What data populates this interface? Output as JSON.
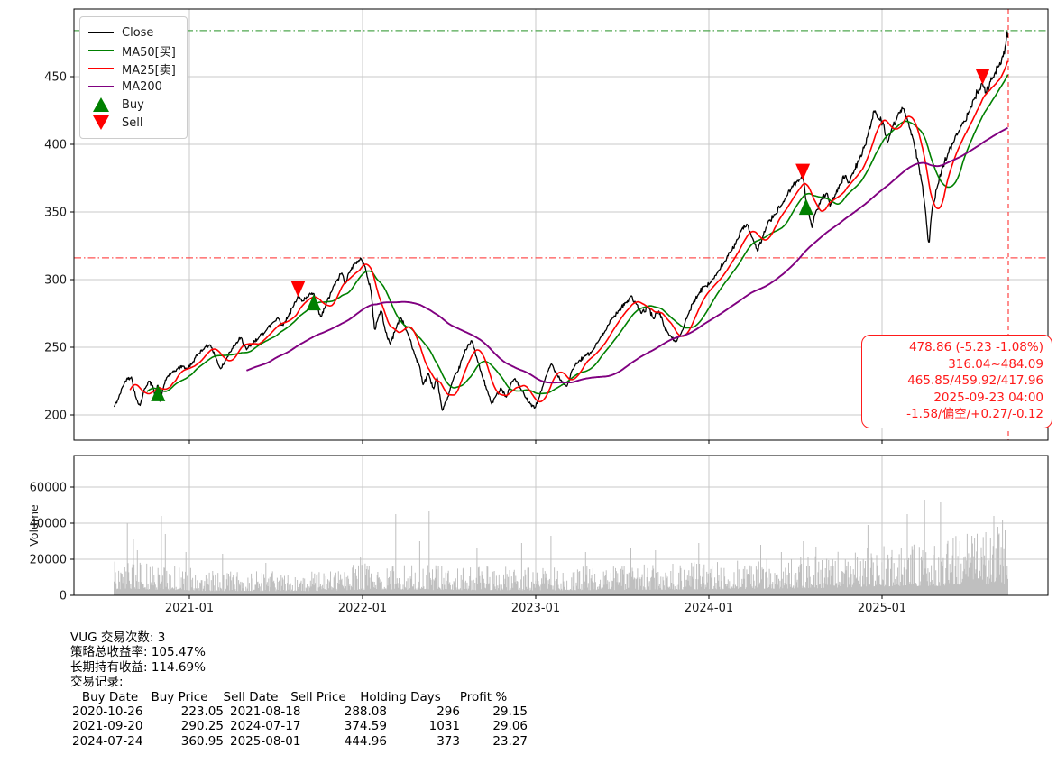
{
  "chart_data": [
    {
      "type": "line",
      "panel": "price",
      "x_axis": {
        "ticks": [
          "2021-01",
          "2022-01",
          "2023-01",
          "2024-01",
          "2025-01"
        ],
        "tick_years": [
          2021,
          2022,
          2023,
          2024,
          2025
        ]
      },
      "y_axis": {
        "ticks": [
          200,
          250,
          300,
          350,
          400,
          450
        ],
        "lim": [
          181,
          500
        ]
      },
      "legend": [
        {
          "label": "Close",
          "type": "line",
          "color": "#000000"
        },
        {
          "label": "MA50[买]",
          "type": "line",
          "color": "#008000"
        },
        {
          "label": "MA25[卖]",
          "type": "line",
          "color": "#ff0000"
        },
        {
          "label": "MA200",
          "type": "line",
          "color": "#800080"
        },
        {
          "label": "Buy",
          "type": "marker-up",
          "color": "#008000"
        },
        {
          "label": "Sell",
          "type": "marker-down",
          "color": "#ff0000"
        }
      ],
      "close_series": [
        [
          2020.565,
          206
        ],
        [
          2020.59,
          212
        ],
        [
          2020.615,
          221
        ],
        [
          2020.64,
          227
        ],
        [
          2020.665,
          228
        ],
        [
          2020.69,
          213
        ],
        [
          2020.715,
          207
        ],
        [
          2020.74,
          219
        ],
        [
          2020.765,
          225
        ],
        [
          2020.79,
          221
        ],
        [
          2020.805,
          214
        ],
        [
          2020.818,
          223
        ],
        [
          2020.83,
          210
        ],
        [
          2020.85,
          220
        ],
        [
          2020.87,
          228
        ],
        [
          2020.9,
          231
        ],
        [
          2020.93,
          234
        ],
        [
          2020.96,
          236
        ],
        [
          2020.99,
          234
        ],
        [
          2021.02,
          239
        ],
        [
          2021.05,
          245
        ],
        [
          2021.09,
          250
        ],
        [
          2021.12,
          252
        ],
        [
          2021.15,
          243
        ],
        [
          2021.18,
          234
        ],
        [
          2021.21,
          241
        ],
        [
          2021.24,
          247
        ],
        [
          2021.27,
          253
        ],
        [
          2021.3,
          257
        ],
        [
          2021.33,
          248
        ],
        [
          2021.36,
          252
        ],
        [
          2021.4,
          257
        ],
        [
          2021.44,
          262
        ],
        [
          2021.48,
          268
        ],
        [
          2021.51,
          272
        ],
        [
          2021.54,
          266
        ],
        [
          2021.57,
          273
        ],
        [
          2021.6,
          280
        ],
        [
          2021.626,
          288
        ],
        [
          2021.65,
          284
        ],
        [
          2021.68,
          287
        ],
        [
          2021.718,
          290
        ],
        [
          2021.74,
          278
        ],
        [
          2021.76,
          272
        ],
        [
          2021.79,
          282
        ],
        [
          2021.82,
          291
        ],
        [
          2021.85,
          299
        ],
        [
          2021.88,
          305
        ],
        [
          2021.9,
          297
        ],
        [
          2021.93,
          307
        ],
        [
          2021.96,
          312
        ],
        [
          2021.99,
          316
        ],
        [
          2022.02,
          307
        ],
        [
          2022.05,
          291
        ],
        [
          2022.07,
          262
        ],
        [
          2022.09,
          272
        ],
        [
          2022.11,
          277
        ],
        [
          2022.13,
          263
        ],
        [
          2022.16,
          252
        ],
        [
          2022.19,
          263
        ],
        [
          2022.22,
          272
        ],
        [
          2022.24,
          267
        ],
        [
          2022.27,
          257
        ],
        [
          2022.3,
          245
        ],
        [
          2022.33,
          236
        ],
        [
          2022.35,
          222
        ],
        [
          2022.38,
          231
        ],
        [
          2022.41,
          219
        ],
        [
          2022.43,
          228
        ],
        [
          2022.46,
          203
        ],
        [
          2022.49,
          212
        ],
        [
          2022.52,
          225
        ],
        [
          2022.55,
          232
        ],
        [
          2022.58,
          243
        ],
        [
          2022.61,
          252
        ],
        [
          2022.63,
          255
        ],
        [
          2022.66,
          242
        ],
        [
          2022.69,
          229
        ],
        [
          2022.72,
          218
        ],
        [
          2022.745,
          208
        ],
        [
          2022.77,
          214
        ],
        [
          2022.8,
          220
        ],
        [
          2022.83,
          213
        ],
        [
          2022.86,
          224
        ],
        [
          2022.88,
          227
        ],
        [
          2022.91,
          220
        ],
        [
          2022.94,
          213
        ],
        [
          2022.97,
          208
        ],
        [
          2022.995,
          205
        ],
        [
          2023.02,
          213
        ],
        [
          2023.05,
          225
        ],
        [
          2023.09,
          238
        ],
        [
          2023.12,
          231
        ],
        [
          2023.15,
          225
        ],
        [
          2023.18,
          221
        ],
        [
          2023.21,
          233
        ],
        [
          2023.25,
          240
        ],
        [
          2023.28,
          243
        ],
        [
          2023.32,
          246
        ],
        [
          2023.36,
          254
        ],
        [
          2023.4,
          262
        ],
        [
          2023.44,
          271
        ],
        [
          2023.48,
          277
        ],
        [
          2023.52,
          283
        ],
        [
          2023.55,
          288
        ],
        [
          2023.58,
          282
        ],
        [
          2023.61,
          275
        ],
        [
          2023.65,
          280
        ],
        [
          2023.68,
          271
        ],
        [
          2023.71,
          277
        ],
        [
          2023.74,
          266
        ],
        [
          2023.77,
          259
        ],
        [
          2023.81,
          254
        ],
        [
          2023.85,
          263
        ],
        [
          2023.88,
          274
        ],
        [
          2023.91,
          283
        ],
        [
          2023.94,
          289
        ],
        [
          2023.97,
          295
        ],
        [
          2024.01,
          298
        ],
        [
          2024.05,
          305
        ],
        [
          2024.09,
          313
        ],
        [
          2024.13,
          321
        ],
        [
          2024.16,
          329
        ],
        [
          2024.19,
          337
        ],
        [
          2024.22,
          341
        ],
        [
          2024.25,
          331
        ],
        [
          2024.28,
          321
        ],
        [
          2024.31,
          331
        ],
        [
          2024.34,
          342
        ],
        [
          2024.38,
          348
        ],
        [
          2024.42,
          355
        ],
        [
          2024.45,
          362
        ],
        [
          2024.48,
          369
        ],
        [
          2024.51,
          373
        ],
        [
          2024.545,
          375
        ],
        [
          2024.558,
          361
        ],
        [
          2024.575,
          352
        ],
        [
          2024.595,
          338
        ],
        [
          2024.62,
          351
        ],
        [
          2024.65,
          359
        ],
        [
          2024.68,
          364
        ],
        [
          2024.7,
          354
        ],
        [
          2024.73,
          363
        ],
        [
          2024.76,
          371
        ],
        [
          2024.79,
          377
        ],
        [
          2024.81,
          371
        ],
        [
          2024.84,
          381
        ],
        [
          2024.87,
          389
        ],
        [
          2024.9,
          399
        ],
        [
          2024.92,
          408
        ],
        [
          2024.94,
          418
        ],
        [
          2024.96,
          425
        ],
        [
          2024.98,
          419
        ],
        [
          2025.01,
          415
        ],
        [
          2025.03,
          401
        ],
        [
          2025.06,
          413
        ],
        [
          2025.09,
          421
        ],
        [
          2025.12,
          427
        ],
        [
          2025.15,
          417
        ],
        [
          2025.18,
          404
        ],
        [
          2025.21,
          386
        ],
        [
          2025.23,
          372
        ],
        [
          2025.25,
          352
        ],
        [
          2025.265,
          330
        ],
        [
          2025.272,
          327
        ],
        [
          2025.29,
          353
        ],
        [
          2025.32,
          369
        ],
        [
          2025.35,
          383
        ],
        [
          2025.38,
          393
        ],
        [
          2025.41,
          401
        ],
        [
          2025.44,
          409
        ],
        [
          2025.47,
          416
        ],
        [
          2025.5,
          424
        ],
        [
          2025.53,
          433
        ],
        [
          2025.56,
          441
        ],
        [
          2025.581,
          445
        ],
        [
          2025.6,
          438
        ],
        [
          2025.625,
          446
        ],
        [
          2025.65,
          452
        ],
        [
          2025.675,
          458
        ],
        [
          2025.7,
          465
        ],
        [
          2025.713,
          472
        ],
        [
          2025.722,
          484
        ],
        [
          2025.729,
          479
        ]
      ],
      "moving_averages": [
        {
          "name": "MA50",
          "window": 50,
          "color": "#008000",
          "width": 1.6
        },
        {
          "name": "MA25",
          "window": 25,
          "color": "#ff0000",
          "width": 1.6
        },
        {
          "name": "MA200",
          "window": 200,
          "color": "#800080",
          "width": 1.9
        }
      ],
      "hlines": [
        {
          "value": 484.09,
          "color": "#3c9e3c",
          "style": "dashdot"
        },
        {
          "value": 316.04,
          "color": "#ff4040",
          "style": "dashdot"
        }
      ],
      "vline": {
        "date": "2025-09-23",
        "color": "#ff3030",
        "style": "dashed"
      },
      "info_box": {
        "lines": [
          "478.86 (-5.23 -1.08%)",
          "316.04~484.09",
          "465.85/459.92/417.96",
          "2025-09-23 04:00",
          "-1.58/偏空/+0.27/-0.12"
        ],
        "color": "#ff1a1a"
      }
    },
    {
      "type": "bar",
      "panel": "volume",
      "ylabel": "Volume",
      "y_axis": {
        "ticks": [
          0,
          20000,
          40000,
          60000
        ],
        "lim": [
          0,
          77500
        ]
      },
      "bar_color": "#bfbfbf",
      "base_levels": [
        [
          2020.565,
          8500
        ],
        [
          2020.95,
          7000
        ],
        [
          2021.1,
          6000
        ],
        [
          2021.7,
          5800
        ],
        [
          2022.0,
          7800
        ],
        [
          2022.6,
          7200
        ],
        [
          2023.0,
          6800
        ],
        [
          2023.6,
          7500
        ],
        [
          2024.0,
          8200
        ],
        [
          2024.6,
          9500
        ],
        [
          2024.95,
          12000
        ],
        [
          2025.3,
          12500
        ],
        [
          2025.5,
          15500
        ],
        [
          2025.73,
          15000
        ]
      ],
      "spikes": [
        [
          2020.64,
          40000
        ],
        [
          2020.675,
          31000
        ],
        [
          2020.7,
          25000
        ],
        [
          2020.84,
          44000
        ],
        [
          2020.862,
          34000
        ],
        [
          2020.98,
          24000
        ],
        [
          2021.19,
          23000
        ],
        [
          2021.44,
          18000
        ],
        [
          2021.99,
          21000
        ],
        [
          2022.19,
          45000
        ],
        [
          2022.33,
          30000
        ],
        [
          2022.385,
          47000
        ],
        [
          2022.66,
          26000
        ],
        [
          2022.92,
          29000
        ],
        [
          2023.09,
          33000
        ],
        [
          2023.29,
          24000
        ],
        [
          2023.55,
          26000
        ],
        [
          2023.69,
          25000
        ],
        [
          2023.94,
          29000
        ],
        [
          2024.3,
          28000
        ],
        [
          2024.42,
          24000
        ],
        [
          2024.545,
          30000
        ],
        [
          2024.62,
          27000
        ],
        [
          2024.92,
          39000
        ],
        [
          2025.145,
          45000
        ],
        [
          2025.245,
          53000
        ],
        [
          2025.34,
          52000
        ],
        [
          2025.45,
          30000
        ],
        [
          2025.52,
          33000
        ],
        [
          2025.6,
          35000
        ],
        [
          2025.645,
          44000
        ],
        [
          2025.67,
          38000
        ],
        [
          2025.695,
          42000
        ],
        [
          2025.71,
          36000
        ]
      ]
    }
  ],
  "summary": {
    "lines": [
      "VUG 交易次数: 3",
      "策略总收益率: 105.47%",
      "长期持有收益: 114.69%",
      "交易记录:"
    ],
    "table": {
      "headers": [
        "Buy Date",
        "Buy Price",
        "Sell Date",
        "Sell Price",
        "Holding Days",
        "Profit %"
      ],
      "trades": [
        {
          "buy_date": "2020-10-26",
          "buy_price": "223.05",
          "sell_date": "2021-08-18",
          "sell_price": "288.08",
          "holding_days": "296",
          "profit_pct": "29.15"
        },
        {
          "buy_date": "2021-09-20",
          "buy_price": "290.25",
          "sell_date": "2024-07-17",
          "sell_price": "374.59",
          "holding_days": "1031",
          "profit_pct": "29.06"
        },
        {
          "buy_date": "2024-07-24",
          "buy_price": "360.95",
          "sell_date": "2025-08-01",
          "sell_price": "444.96",
          "holding_days": "373",
          "profit_pct": "23.27"
        }
      ]
    }
  },
  "colors": {
    "grid": "#c8c8c8",
    "spine": "#000000",
    "close": "#000000",
    "buy_marker": "#008000",
    "sell_marker": "#ff0000"
  }
}
